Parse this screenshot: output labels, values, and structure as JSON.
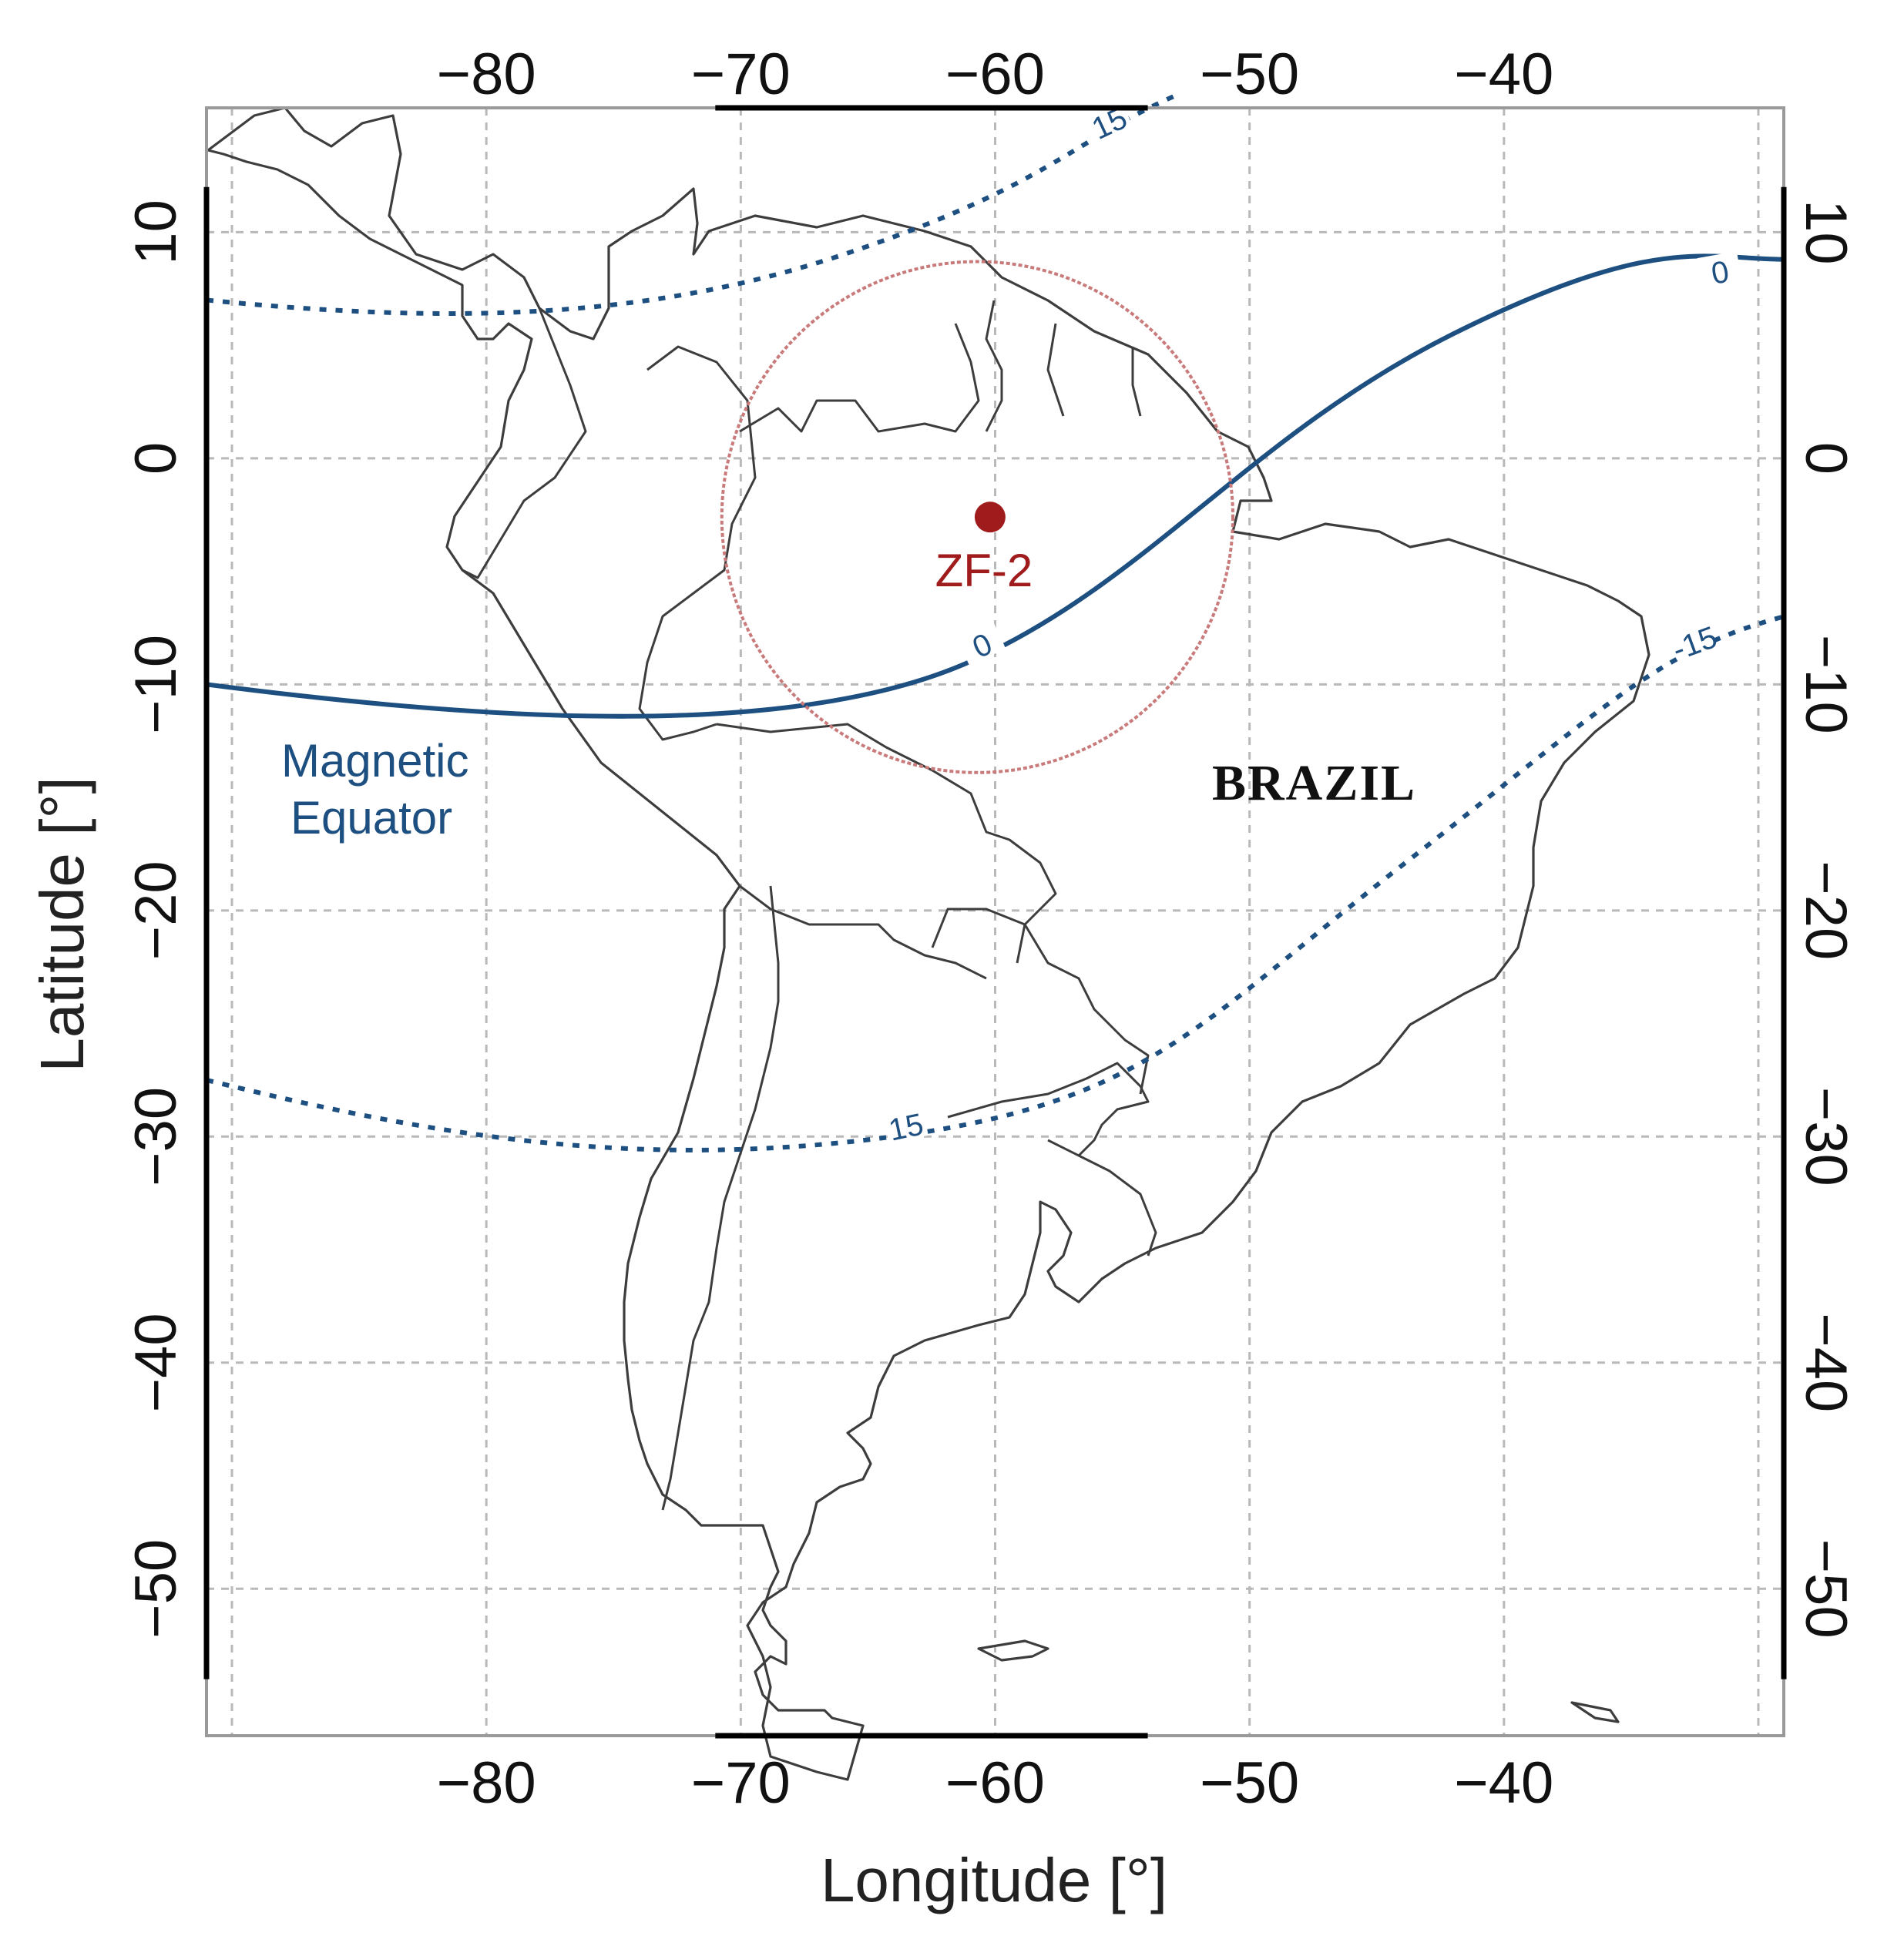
{
  "map": {
    "x_axis": {
      "title": "Longitude [°]",
      "ticks": [
        {
          "value": -80,
          "label": "−80"
        },
        {
          "value": -70,
          "label": "−70"
        },
        {
          "value": -60,
          "label": "−60"
        },
        {
          "value": -50,
          "label": "−50"
        },
        {
          "value": -40,
          "label": "−40"
        }
      ]
    },
    "y_axis": {
      "title": "Latitude [°]",
      "ticks": [
        {
          "value": 10,
          "label": "10"
        },
        {
          "value": 0,
          "label": "0"
        },
        {
          "value": -10,
          "label": "−10"
        },
        {
          "value": -20,
          "label": "−20"
        },
        {
          "value": -30,
          "label": "−30"
        },
        {
          "value": -40,
          "label": "−40"
        },
        {
          "value": -50,
          "label": "−50"
        }
      ]
    },
    "extent": {
      "lon_min": -91,
      "lon_max": -29,
      "lat_min": -56.5,
      "lat_max": 15.5
    },
    "gridlines": true,
    "site": {
      "name": "ZF-2",
      "lon": -60.2,
      "lat": -2.6,
      "circle_radius_deg": 11.3,
      "color": "#a01c1c"
    },
    "contours": [
      {
        "level": "0",
        "style": "solid",
        "label": "0"
      },
      {
        "level": "15",
        "style": "dashed",
        "label": "15"
      },
      {
        "level": "-15",
        "style": "dashed",
        "label": "-15"
      }
    ],
    "equator_label": {
      "line1": "Magnetic",
      "line2": "Equator"
    },
    "country_label": "BRAZIL",
    "colors": {
      "contour": "#1d4f80",
      "site": "#a01c1c",
      "coast": "#3d3d3d",
      "grid": "#b9b9b9"
    }
  }
}
